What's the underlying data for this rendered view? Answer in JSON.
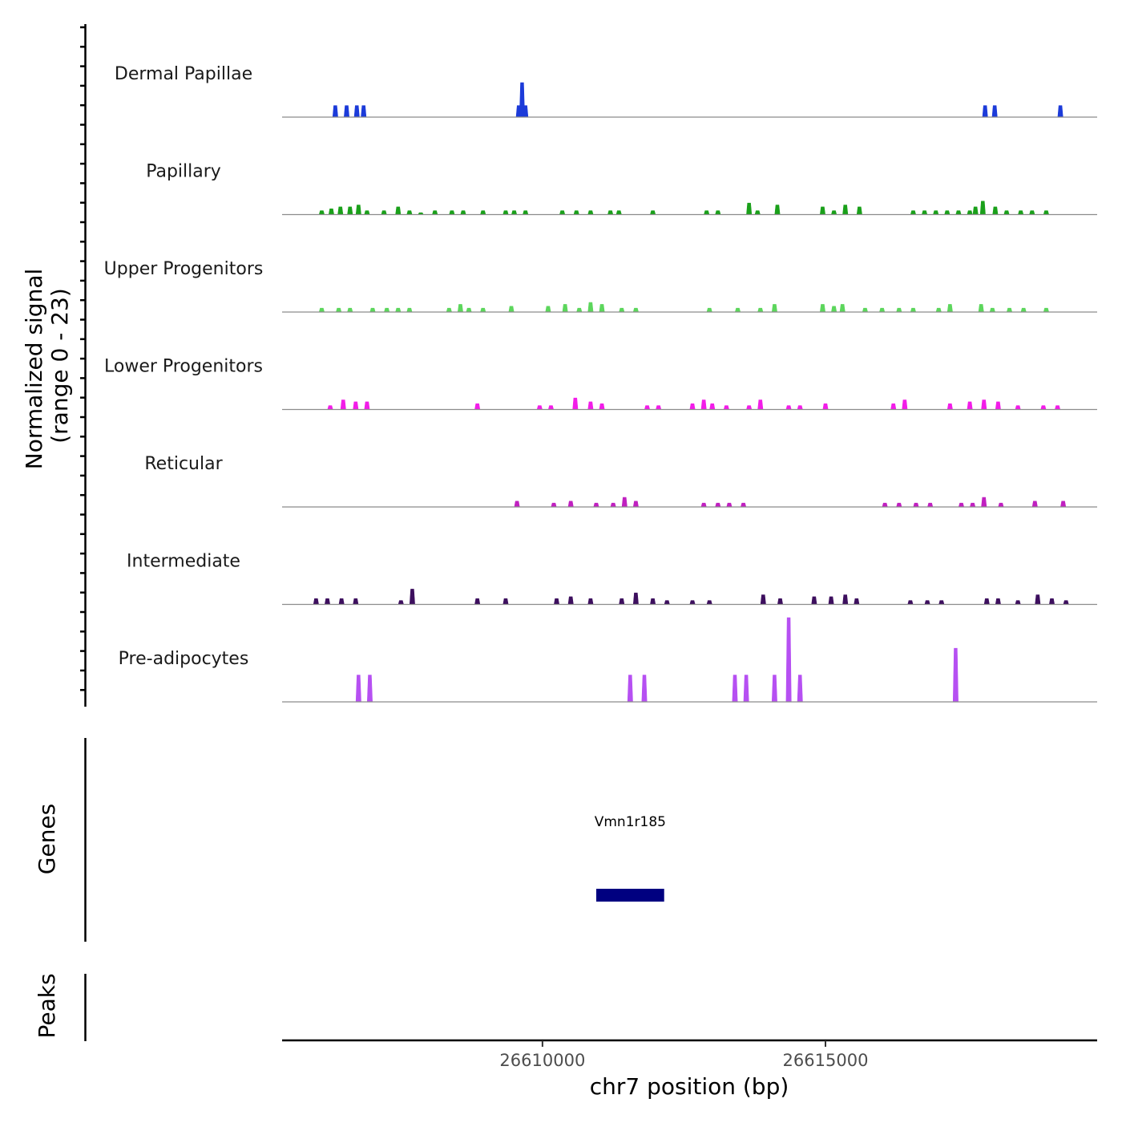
{
  "chart_data": {
    "type": "area",
    "title": "",
    "xlabel": "chr7 position (bp)",
    "ylabel": "Normalized signal",
    "ylabel_sub": "(range 0 - 23)",
    "ylim": [
      0,
      23
    ],
    "xlim": [
      26605400,
      26619800
    ],
    "x_ticks": [
      {
        "value": 26610000,
        "label": "26610000"
      },
      {
        "value": 26615000,
        "label": "26615000"
      }
    ],
    "series": [
      {
        "name": "Dermal Papillae",
        "color": "#1C3BD9",
        "peaks": [
          [
            26606340,
            3
          ],
          [
            26606540,
            3
          ],
          [
            26606720,
            3
          ],
          [
            26606840,
            3
          ],
          [
            26609580,
            3
          ],
          [
            26609640,
            9
          ],
          [
            26609700,
            3
          ],
          [
            26617820,
            3
          ],
          [
            26617990,
            3
          ],
          [
            26619150,
            3
          ]
        ]
      },
      {
        "name": "Papillary",
        "color": "#1AA01A",
        "peaks": [
          [
            26606100,
            1
          ],
          [
            26606270,
            1.5
          ],
          [
            26606430,
            2
          ],
          [
            26606600,
            2
          ],
          [
            26606750,
            2.5
          ],
          [
            26606900,
            1
          ],
          [
            26607200,
            1
          ],
          [
            26607450,
            2
          ],
          [
            26607650,
            1
          ],
          [
            26607850,
            0.5
          ],
          [
            26608100,
            1
          ],
          [
            26608400,
            1
          ],
          [
            26608600,
            1
          ],
          [
            26608950,
            1
          ],
          [
            26609350,
            1
          ],
          [
            26609500,
            1
          ],
          [
            26609700,
            1
          ],
          [
            26610350,
            1
          ],
          [
            26610600,
            1
          ],
          [
            26610850,
            1
          ],
          [
            26611200,
            1
          ],
          [
            26611350,
            1
          ],
          [
            26611950,
            1
          ],
          [
            26612900,
            1
          ],
          [
            26613100,
            1
          ],
          [
            26613650,
            3
          ],
          [
            26613800,
            1
          ],
          [
            26614150,
            2.5
          ],
          [
            26614950,
            2
          ],
          [
            26615150,
            1
          ],
          [
            26615350,
            2.5
          ],
          [
            26615600,
            2
          ],
          [
            26616550,
            1
          ],
          [
            26616750,
            1
          ],
          [
            26616950,
            1
          ],
          [
            26617150,
            1
          ],
          [
            26617350,
            1
          ],
          [
            26617550,
            1
          ],
          [
            26617650,
            2
          ],
          [
            26617780,
            3.5
          ],
          [
            26618000,
            2
          ],
          [
            26618200,
            1
          ],
          [
            26618450,
            1
          ],
          [
            26618650,
            1
          ],
          [
            26618900,
            1
          ]
        ]
      },
      {
        "name": "Upper Progenitors",
        "color": "#5CD65C",
        "peaks": [
          [
            26606100,
            1
          ],
          [
            26606400,
            1
          ],
          [
            26606600,
            1
          ],
          [
            26607000,
            1
          ],
          [
            26607250,
            1
          ],
          [
            26607450,
            1
          ],
          [
            26607650,
            1
          ],
          [
            26608350,
            1
          ],
          [
            26608550,
            2
          ],
          [
            26608700,
            1
          ],
          [
            26608950,
            1
          ],
          [
            26609450,
            1.5
          ],
          [
            26610100,
            1.5
          ],
          [
            26610400,
            2
          ],
          [
            26610650,
            1
          ],
          [
            26610850,
            2.5
          ],
          [
            26611050,
            2
          ],
          [
            26611400,
            1
          ],
          [
            26611650,
            1
          ],
          [
            26612950,
            1
          ],
          [
            26613450,
            1
          ],
          [
            26613850,
            1
          ],
          [
            26614100,
            2
          ],
          [
            26614950,
            2
          ],
          [
            26615150,
            1.5
          ],
          [
            26615300,
            2
          ],
          [
            26615700,
            1
          ],
          [
            26616000,
            1
          ],
          [
            26616300,
            1
          ],
          [
            26616550,
            1
          ],
          [
            26617000,
            1
          ],
          [
            26617200,
            2
          ],
          [
            26617750,
            2
          ],
          [
            26617950,
            1
          ],
          [
            26618250,
            1
          ],
          [
            26618500,
            1
          ],
          [
            26618900,
            1
          ]
        ]
      },
      {
        "name": "Lower Progenitors",
        "color": "#F21DE8",
        "peaks": [
          [
            26606250,
            1
          ],
          [
            26606480,
            2.5
          ],
          [
            26606700,
            2
          ],
          [
            26606900,
            2
          ],
          [
            26608850,
            1.5
          ],
          [
            26609950,
            1
          ],
          [
            26610150,
            1
          ],
          [
            26610580,
            3
          ],
          [
            26610850,
            2
          ],
          [
            26611050,
            1.5
          ],
          [
            26611850,
            1
          ],
          [
            26612050,
            1
          ],
          [
            26612650,
            1.5
          ],
          [
            26612850,
            2.5
          ],
          [
            26613000,
            1.5
          ],
          [
            26613250,
            1
          ],
          [
            26613650,
            1
          ],
          [
            26613850,
            2.5
          ],
          [
            26614350,
            1
          ],
          [
            26614550,
            1
          ],
          [
            26615000,
            1.5
          ],
          [
            26616200,
            1.5
          ],
          [
            26616400,
            2.5
          ],
          [
            26617200,
            1.5
          ],
          [
            26617550,
            2
          ],
          [
            26617800,
            2.5
          ],
          [
            26618050,
            2
          ],
          [
            26618400,
            1
          ],
          [
            26618850,
            1
          ],
          [
            26619100,
            1
          ]
        ]
      },
      {
        "name": "Reticular",
        "color": "#C020C0",
        "peaks": [
          [
            26609550,
            1.5
          ],
          [
            26610200,
            1
          ],
          [
            26610500,
            1.5
          ],
          [
            26610950,
            1
          ],
          [
            26611250,
            1
          ],
          [
            26611450,
            2.5
          ],
          [
            26611650,
            1.5
          ],
          [
            26612850,
            1
          ],
          [
            26613100,
            1
          ],
          [
            26613300,
            1
          ],
          [
            26613550,
            1
          ],
          [
            26616050,
            1
          ],
          [
            26616300,
            1
          ],
          [
            26616600,
            1
          ],
          [
            26616850,
            1
          ],
          [
            26617400,
            1
          ],
          [
            26617600,
            1
          ],
          [
            26617800,
            2.5
          ],
          [
            26618100,
            1
          ],
          [
            26618700,
            1.5
          ],
          [
            26619200,
            1.5
          ]
        ]
      },
      {
        "name": "Intermediate",
        "color": "#3D0F5E",
        "peaks": [
          [
            26606000,
            1.5
          ],
          [
            26606200,
            1.5
          ],
          [
            26606450,
            1.5
          ],
          [
            26606700,
            1.5
          ],
          [
            26607500,
            1
          ],
          [
            26607700,
            4
          ],
          [
            26608850,
            1.5
          ],
          [
            26609350,
            1.5
          ],
          [
            26610250,
            1.5
          ],
          [
            26610500,
            2
          ],
          [
            26610850,
            1.5
          ],
          [
            26611400,
            1.5
          ],
          [
            26611650,
            3
          ],
          [
            26611950,
            1.5
          ],
          [
            26612200,
            1
          ],
          [
            26612650,
            1
          ],
          [
            26612950,
            1
          ],
          [
            26613900,
            2.5
          ],
          [
            26614200,
            1.5
          ],
          [
            26614800,
            2
          ],
          [
            26615100,
            2
          ],
          [
            26615350,
            2.5
          ],
          [
            26615550,
            1.5
          ],
          [
            26616500,
            1
          ],
          [
            26616800,
            1
          ],
          [
            26617050,
            1
          ],
          [
            26617850,
            1.5
          ],
          [
            26618050,
            1.5
          ],
          [
            26618400,
            1
          ],
          [
            26618750,
            2.5
          ],
          [
            26619000,
            1.5
          ],
          [
            26619250,
            1
          ]
        ]
      },
      {
        "name": "Pre-adipocytes",
        "color": "#B650F2",
        "peaks": [
          [
            26606750,
            7
          ],
          [
            26606950,
            7
          ],
          [
            26611550,
            7
          ],
          [
            26611800,
            7
          ],
          [
            26613400,
            7
          ],
          [
            26613600,
            7
          ],
          [
            26614100,
            7
          ],
          [
            26614350,
            22
          ],
          [
            26614550,
            7
          ],
          [
            26617300,
            14
          ]
        ]
      }
    ],
    "genes": [
      {
        "name": "Vmn1r185",
        "start": 26610950,
        "end": 26612150,
        "color": "#000080"
      }
    ],
    "track_headers": {
      "genes": "Genes",
      "peaks": "Peaks"
    }
  }
}
